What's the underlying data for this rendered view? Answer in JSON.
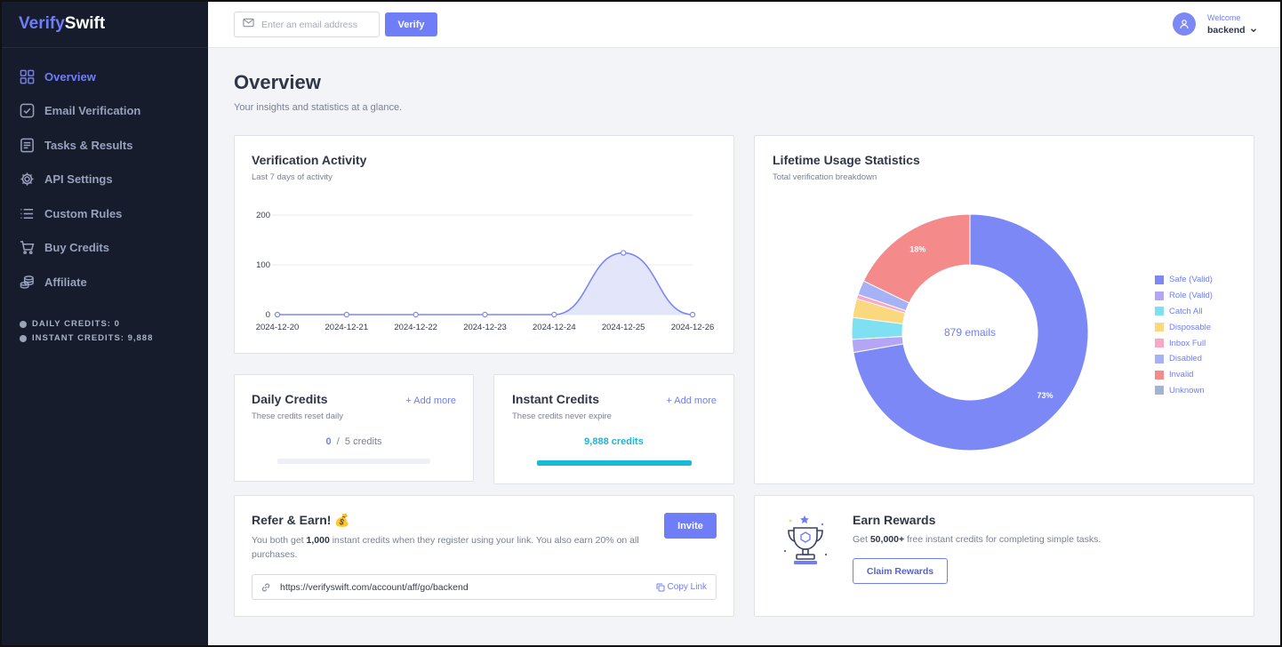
{
  "brand": {
    "part1": "Verify",
    "part2": "Swift"
  },
  "sidebar": {
    "items": [
      {
        "label": "Overview",
        "icon": "grid-icon"
      },
      {
        "label": "Email Verification",
        "icon": "check-square-icon"
      },
      {
        "label": "Tasks & Results",
        "icon": "document-icon"
      },
      {
        "label": "API Settings",
        "icon": "gear-icon"
      },
      {
        "label": "Custom Rules",
        "icon": "list-icon"
      },
      {
        "label": "Buy Credits",
        "icon": "cart-icon"
      },
      {
        "label": "Affiliate",
        "icon": "coins-icon"
      }
    ],
    "daily_credits": "DAILY CREDITS: 0",
    "instant_credits": "INSTANT CREDITS: 9,888"
  },
  "header": {
    "email_placeholder": "Enter an email address",
    "verify_label": "Verify",
    "welcome": "Welcome",
    "username": "backend"
  },
  "page": {
    "title": "Overview",
    "subtitle": "Your insights and statistics at a glance."
  },
  "activity": {
    "title": "Verification Activity",
    "subtitle": "Last 7 days of activity",
    "chart_data": {
      "type": "area",
      "x": [
        "2024-12-20",
        "2024-12-21",
        "2024-12-22",
        "2024-12-23",
        "2024-12-24",
        "2024-12-25",
        "2024-12-26"
      ],
      "values": [
        0,
        0,
        0,
        0,
        0,
        124,
        0
      ],
      "yticks": [
        0,
        100,
        200
      ],
      "ylim": [
        0,
        200
      ],
      "color": "#7b88f5",
      "fill": "#e3e6fb",
      "grid": true
    }
  },
  "lifetime": {
    "title": "Lifetime Usage Statistics",
    "subtitle": "Total verification breakdown",
    "center_label": "879 emails",
    "chart_data": {
      "type": "pie",
      "donut": true,
      "labels": [
        "Safe (Valid)",
        "Role (Valid)",
        "Catch All",
        "Disposable",
        "Inbox Full",
        "Disabled",
        "Invalid",
        "Unknown"
      ],
      "values": [
        73,
        1.8,
        3,
        2.6,
        0.6,
        2,
        18,
        0
      ],
      "colors": [
        "#7b88f5",
        "#b4a6f5",
        "#7ee0f2",
        "#fbd77e",
        "#fba6c6",
        "#a6b2f5",
        "#f48a8a",
        "#a5b2d2"
      ],
      "data_labels": [
        {
          "label": "73%"
        },
        {
          "label": "18%"
        }
      ],
      "legend": "right"
    }
  },
  "daily": {
    "title": "Daily Credits",
    "subtitle": "These credits reset daily",
    "add_more": "+ Add more",
    "used": "0",
    "separator": "/",
    "total": "5 credits",
    "progress": 0
  },
  "instant": {
    "title": "Instant Credits",
    "subtitle": "These credits never expire",
    "add_more": "+ Add more",
    "count": "9,888 credits",
    "progress": 1
  },
  "refer": {
    "title": "Refer & Earn!",
    "emoji": "💰",
    "text_before": "You both get ",
    "text_bold": "1,000",
    "text_after": " instant credits when they register using your link. You also earn 20% on all purchases.",
    "invite_label": "Invite",
    "url": "https://verifyswift.com/account/aff/go/backend",
    "copy_label": "Copy Link"
  },
  "rewards": {
    "title": "Earn Rewards",
    "text_before": "Get ",
    "text_bold": "50,000+",
    "text_after": " free instant credits for completing simple tasks.",
    "claim_label": "Claim Rewards"
  }
}
